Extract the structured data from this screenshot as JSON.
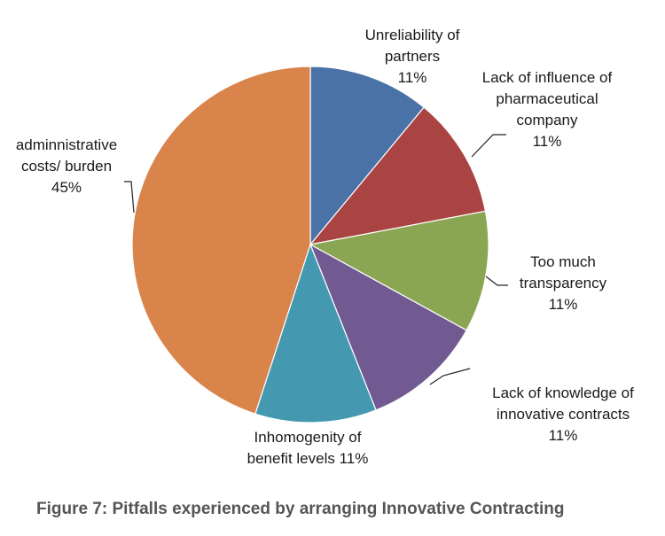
{
  "chart_data": {
    "type": "pie",
    "title": "",
    "slices": [
      {
        "label": "Unreliability of partners",
        "label_lines": [
          "Unreliability of",
          "partners"
        ],
        "percent_text": "11%",
        "value": 11,
        "color": "#4a72a6",
        "label_side": "top"
      },
      {
        "label": "Lack of influence of pharmaceutical company",
        "label_lines": [
          "Lack of influence of",
          "pharmaceutical",
          "company"
        ],
        "percent_text": "11%",
        "value": 11,
        "color": "#a94442",
        "label_side": "right"
      },
      {
        "label": "Too much transparency",
        "label_lines": [
          "Too much",
          "transparency"
        ],
        "percent_text": "11%",
        "value": 11,
        "color": "#8aa653",
        "label_side": "right"
      },
      {
        "label": "Lack of knowledge of innovative contracts",
        "label_lines": [
          "Lack of knowledge of",
          "innovative contracts"
        ],
        "percent_text": "11%",
        "value": 11,
        "color": "#715a92",
        "label_side": "bottom-right"
      },
      {
        "label": "Inhomogenity of benefit levels",
        "label_lines": [
          "Inhomogenity of",
          "benefit levels"
        ],
        "percent_text": "11%",
        "value": 11,
        "color": "#4499b1",
        "label_side": "bottom"
      },
      {
        "label": "adminnistrative costs/ burden",
        "label_lines": [
          "adminnistrative",
          "costs/ burden"
        ],
        "percent_text": "45%",
        "value": 45,
        "color": "#d9844a",
        "label_side": "left"
      }
    ],
    "start_angle_deg": 0,
    "direction": "clockwise"
  },
  "caption": "Figure 7: Pitfalls experienced by arranging Innovative Contracting"
}
